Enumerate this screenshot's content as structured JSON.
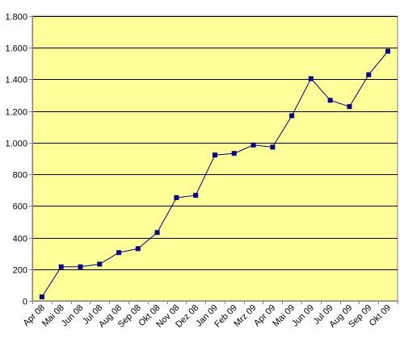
{
  "chart_data": {
    "type": "line",
    "title": "",
    "xlabel": "",
    "ylabel": "",
    "categories": [
      "Apr 08",
      "Mai 08",
      "Jun 08",
      "Jul 08",
      "Aug 08",
      "Sep 08",
      "Okt 08",
      "Nov 08",
      "Dez 08",
      "Jan 09",
      "Feb 09",
      "Mrz 09",
      "Apr 09",
      "Mai 09",
      "Jun 09",
      "Jul 09",
      "Aug 09",
      "Sep 09",
      "Okt 09"
    ],
    "series": [
      {
        "values": [
          25,
          215,
          215,
          232,
          305,
          330,
          432,
          652,
          667,
          922,
          932,
          985,
          972,
          1170,
          1405,
          1268,
          1228,
          1430,
          1578
        ]
      }
    ],
    "ylim": [
      0,
      1800
    ],
    "yticks": [
      0,
      200,
      400,
      600,
      800,
      1000,
      1200,
      1400,
      1600,
      1800
    ],
    "ytick_labels": [
      "0",
      "200",
      "400",
      "600",
      "800",
      "1.000",
      "1.200",
      "1.400",
      "1.600",
      "1.800"
    ],
    "grid": true,
    "legend": "none",
    "colors": {
      "plot_background": "#FFFF99",
      "line": "#000080",
      "marker": "#000080",
      "grid": "#000000",
      "axis": "#808080"
    }
  }
}
